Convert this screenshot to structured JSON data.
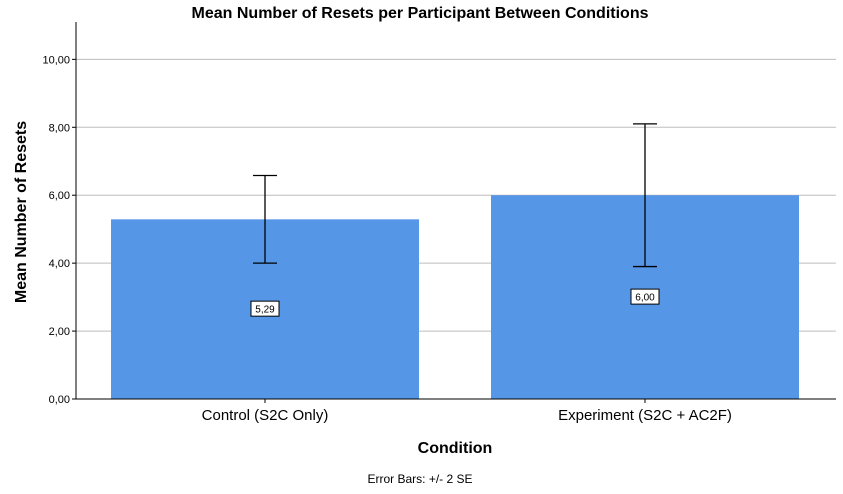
{
  "chart_data": {
    "type": "bar",
    "title": "Mean Number of Resets per Participant Between Conditions",
    "xlabel": "Condition",
    "ylabel": "Mean Number of Resets",
    "categories": [
      "Control (S2C Only)",
      "Experiment (S2C + AC2F)"
    ],
    "values": [
      5.29,
      6.0
    ],
    "value_labels": [
      "5,29",
      "6,00"
    ],
    "error_bars": [
      {
        "low": 4.0,
        "high": 6.58
      },
      {
        "low": 3.9,
        "high": 8.1
      }
    ],
    "ylim": [
      0,
      11.1
    ],
    "yticks": [
      0,
      2,
      4,
      6,
      8,
      10
    ],
    "ytick_labels": [
      "0,00",
      "2,00",
      "4,00",
      "6,00",
      "8,00",
      "10,00"
    ],
    "grid": true,
    "bar_color": "#5596e6",
    "footnote": "Error Bars: +/- 2 SE"
  }
}
